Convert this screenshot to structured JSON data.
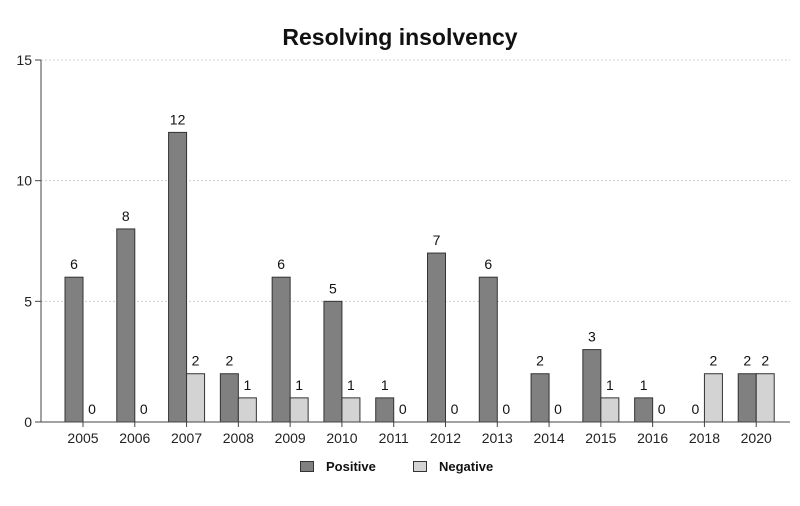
{
  "chart_data": {
    "type": "bar",
    "title": "Resolving insolvency",
    "xlabel": "",
    "ylabel": "",
    "categories": [
      "2005",
      "2006",
      "2007",
      "2008",
      "2009",
      "2010",
      "2011",
      "2012",
      "2013",
      "2014",
      "2015",
      "2016",
      "2018",
      "2020"
    ],
    "series": [
      {
        "name": "Positive",
        "color": "#808080",
        "values": [
          6,
          8,
          12,
          2,
          6,
          5,
          1,
          7,
          6,
          2,
          3,
          1,
          0,
          2
        ]
      },
      {
        "name": "Negative",
        "color": "#d3d3d3",
        "values": [
          0,
          0,
          2,
          1,
          1,
          1,
          0,
          0,
          0,
          0,
          1,
          0,
          2,
          2
        ]
      }
    ],
    "ylim": [
      0,
      15
    ],
    "yticks": [
      0,
      5,
      10,
      15
    ],
    "grid": true,
    "data_labels": true,
    "legend_position": "bottom"
  }
}
